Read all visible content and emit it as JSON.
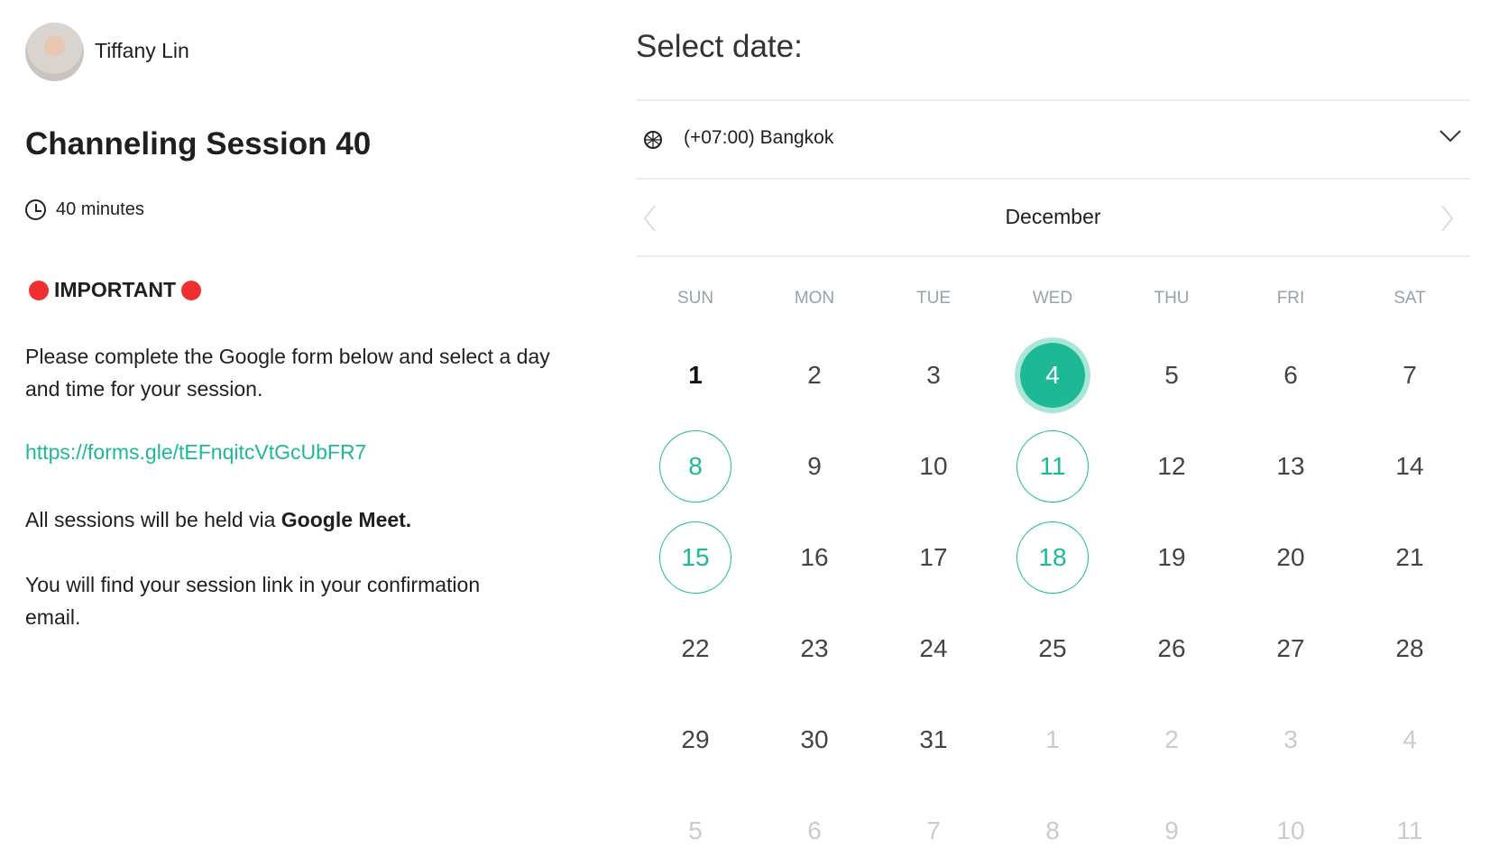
{
  "host": {
    "name": "Tiffany Lin"
  },
  "event": {
    "title": "Channeling Session 40",
    "duration": "40 minutes",
    "important": "IMPORTANT",
    "para1": "Please complete the Google form below and select a day and time for your session.",
    "link": "https://forms.gle/tEFnqitcVtGcUbFR7",
    "para2_prefix": "All sessions will be held via ",
    "para2_bold": "Google Meet.",
    "para3": "You will find your session link in your confirmation email."
  },
  "picker": {
    "title": "Select date:",
    "timezone": "(+07:00) Bangkok",
    "month": "December",
    "weekdays": [
      "SUN",
      "MON",
      "TUE",
      "WED",
      "THU",
      "FRI",
      "SAT"
    ],
    "accent": "#1db997",
    "weeks": [
      [
        {
          "d": "1",
          "s": "today"
        },
        {
          "d": "2"
        },
        {
          "d": "3"
        },
        {
          "d": "4",
          "s": "selected"
        },
        {
          "d": "5"
        },
        {
          "d": "6"
        },
        {
          "d": "7"
        }
      ],
      [
        {
          "d": "8",
          "s": "available"
        },
        {
          "d": "9"
        },
        {
          "d": "10"
        },
        {
          "d": "11",
          "s": "available"
        },
        {
          "d": "12"
        },
        {
          "d": "13"
        },
        {
          "d": "14"
        }
      ],
      [
        {
          "d": "15",
          "s": "available"
        },
        {
          "d": "16"
        },
        {
          "d": "17"
        },
        {
          "d": "18",
          "s": "available"
        },
        {
          "d": "19"
        },
        {
          "d": "20"
        },
        {
          "d": "21"
        }
      ],
      [
        {
          "d": "22"
        },
        {
          "d": "23"
        },
        {
          "d": "24"
        },
        {
          "d": "25"
        },
        {
          "d": "26"
        },
        {
          "d": "27"
        },
        {
          "d": "28"
        }
      ],
      [
        {
          "d": "29"
        },
        {
          "d": "30"
        },
        {
          "d": "31"
        },
        {
          "d": "1",
          "s": "other"
        },
        {
          "d": "2",
          "s": "other"
        },
        {
          "d": "3",
          "s": "other"
        },
        {
          "d": "4",
          "s": "other"
        }
      ],
      [
        {
          "d": "5",
          "s": "other"
        },
        {
          "d": "6",
          "s": "other"
        },
        {
          "d": "7",
          "s": "other"
        },
        {
          "d": "8",
          "s": "other"
        },
        {
          "d": "9",
          "s": "other"
        },
        {
          "d": "10",
          "s": "other"
        },
        {
          "d": "11",
          "s": "other"
        }
      ]
    ]
  }
}
